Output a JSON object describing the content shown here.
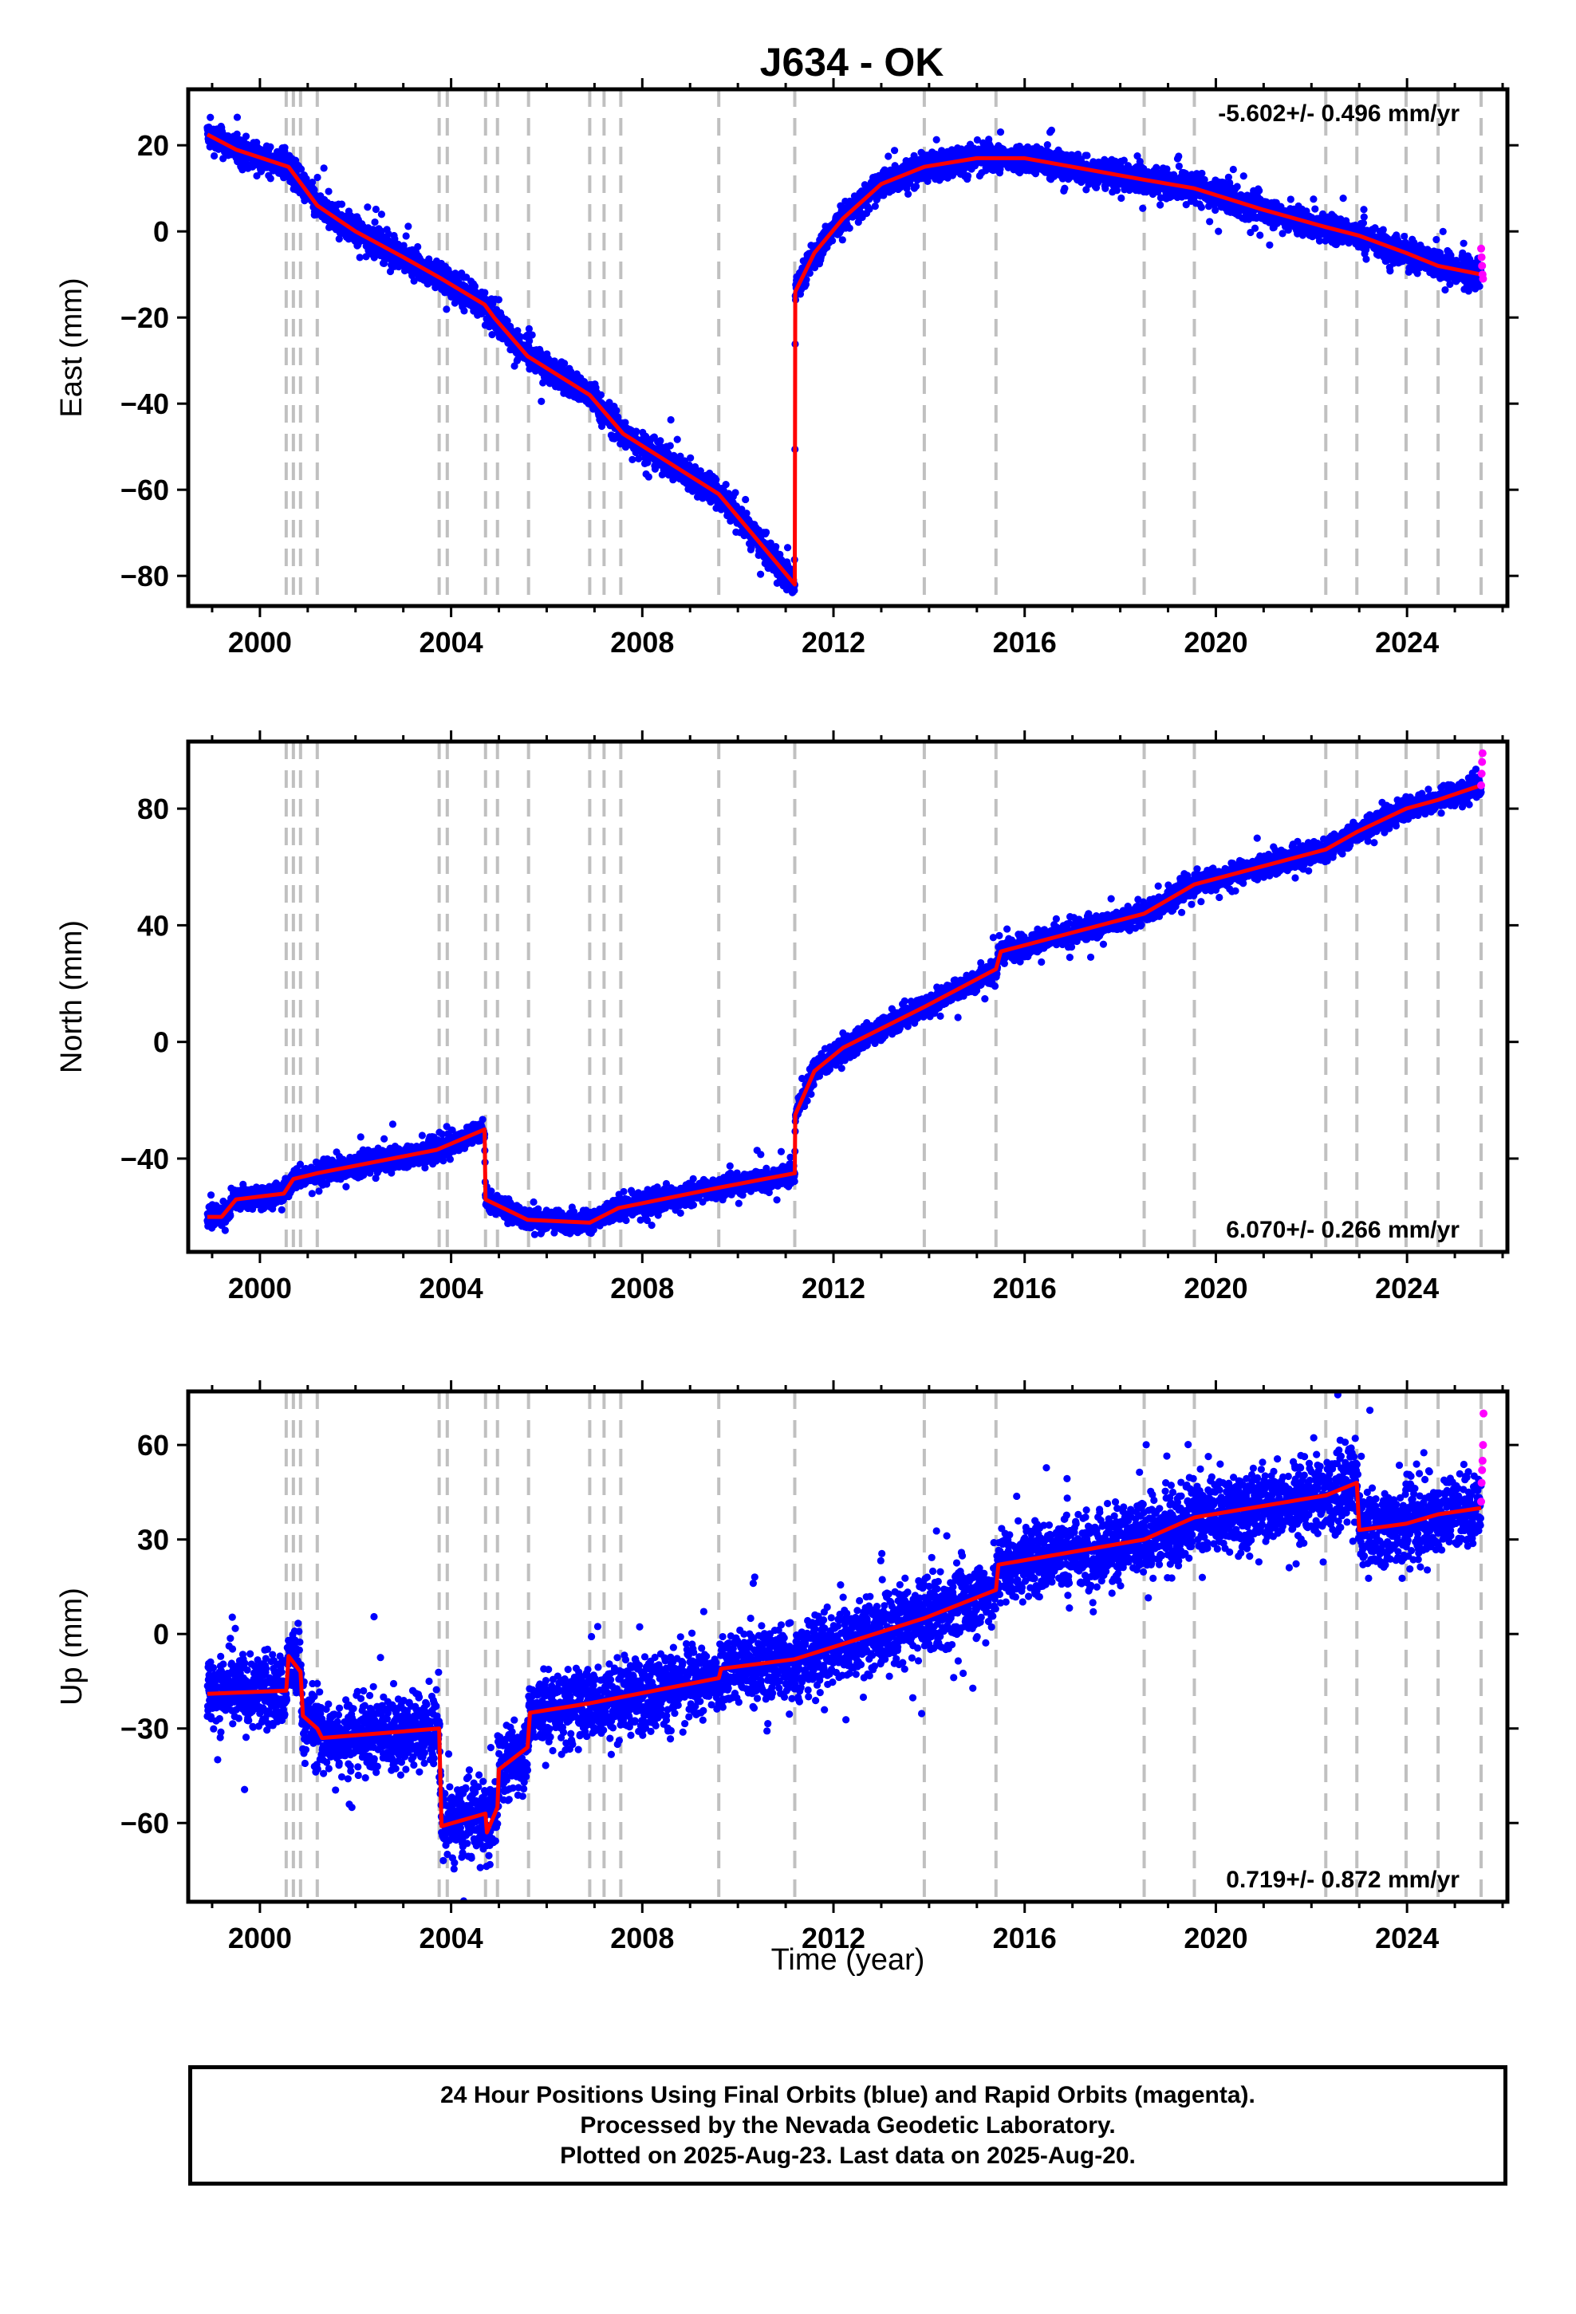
{
  "chart_data": {
    "type": "scatter",
    "title": "J634 - OK",
    "xlabel": "Time (year)",
    "xlim": [
      1998.5,
      2026.1
    ],
    "xticks": [
      2000,
      2004,
      2008,
      2012,
      2016,
      2020,
      2024
    ],
    "event_lines": [
      2000.55,
      2000.7,
      2000.85,
      2001.2,
      2003.75,
      2003.92,
      2004.72,
      2004.97,
      2005.62,
      2006.9,
      2007.2,
      2007.55,
      2009.6,
      2011.19,
      2013.9,
      2015.4,
      2018.5,
      2019.55,
      2022.3,
      2022.95,
      2023.98,
      2024.65,
      2025.55
    ],
    "colors": {
      "final": "#0000ff",
      "rapid": "#ff00ff",
      "model": "#ff0000",
      "event": "#c0c0c0"
    },
    "panels": [
      {
        "ylabel": "East (mm)",
        "rate": "-5.602+/- 0.496 mm/yr",
        "rate_position": "top-right",
        "ylim": [
          -87,
          33
        ],
        "yticks": [
          20,
          0,
          -20,
          -40,
          -60,
          -80
        ],
        "scatter_half_width": 2.2,
        "model": [
          [
            1998.9,
            22.5
          ],
          [
            1999.5,
            19
          ],
          [
            2000.6,
            15
          ],
          [
            2001.2,
            6
          ],
          [
            2002.0,
            0
          ],
          [
            2003.0,
            -6
          ],
          [
            2003.8,
            -11
          ],
          [
            2004.7,
            -17
          ],
          [
            2004.9,
            -20
          ],
          [
            2005.6,
            -29
          ],
          [
            2006.9,
            -38
          ],
          [
            2007.6,
            -47
          ],
          [
            2009.6,
            -61
          ],
          [
            2011.19,
            -82
          ],
          [
            2011.2,
            -14
          ],
          [
            2011.6,
            -5
          ],
          [
            2012.2,
            3
          ],
          [
            2013.0,
            11
          ],
          [
            2013.9,
            15
          ],
          [
            2015.0,
            17
          ],
          [
            2016.0,
            17
          ],
          [
            2017.0,
            15
          ],
          [
            2018.5,
            12
          ],
          [
            2019.55,
            10
          ],
          [
            2021.0,
            5
          ],
          [
            2022.3,
            1
          ],
          [
            2023.0,
            -1
          ],
          [
            2023.98,
            -5
          ],
          [
            2024.65,
            -8
          ],
          [
            2025.55,
            -10
          ]
        ],
        "rapid": [
          [
            2025.55,
            -4
          ],
          [
            2025.56,
            -6
          ],
          [
            2025.57,
            -8
          ],
          [
            2025.58,
            -10
          ],
          [
            2025.59,
            -11
          ]
        ]
      },
      {
        "ylabel": "North (mm)",
        "rate": "6.070+/- 0.266 mm/yr",
        "rate_position": "bottom-right",
        "ylim": [
          -72,
          103
        ],
        "yticks": [
          80,
          40,
          0,
          -40
        ],
        "scatter_half_width": 2.5,
        "model": [
          [
            1998.9,
            -60
          ],
          [
            1999.2,
            -60
          ],
          [
            1999.5,
            -54
          ],
          [
            2000.5,
            -52
          ],
          [
            2000.7,
            -47
          ],
          [
            2001.2,
            -45
          ],
          [
            2003.7,
            -37
          ],
          [
            2004.7,
            -30
          ],
          [
            2004.72,
            -54
          ],
          [
            2005.6,
            -61
          ],
          [
            2006.9,
            -62
          ],
          [
            2007.5,
            -57
          ],
          [
            2009.6,
            -50
          ],
          [
            2011.19,
            -45
          ],
          [
            2011.2,
            -25
          ],
          [
            2011.6,
            -10
          ],
          [
            2012.2,
            -2
          ],
          [
            2013.9,
            12
          ],
          [
            2015.4,
            25
          ],
          [
            2015.5,
            31
          ],
          [
            2018.5,
            44
          ],
          [
            2019.55,
            54
          ],
          [
            2022.3,
            66
          ],
          [
            2022.95,
            72
          ],
          [
            2023.98,
            80
          ],
          [
            2024.65,
            83
          ],
          [
            2025.55,
            88
          ]
        ],
        "rapid": [
          [
            2025.55,
            88
          ],
          [
            2025.56,
            92
          ],
          [
            2025.57,
            96
          ],
          [
            2025.58,
            99
          ]
        ]
      },
      {
        "ylabel": "Up (mm)",
        "rate": "0.719+/- 0.872 mm/yr",
        "rate_position": "bottom-right",
        "ylim": [
          -85,
          77
        ],
        "yticks": [
          60,
          30,
          0,
          -30,
          -60
        ],
        "scatter_half_width": 8,
        "model": [
          [
            1998.9,
            -19
          ],
          [
            2000.55,
            -18
          ],
          [
            2000.6,
            -7
          ],
          [
            2000.85,
            -12
          ],
          [
            2000.9,
            -26
          ],
          [
            2001.2,
            -30
          ],
          [
            2001.3,
            -33
          ],
          [
            2003.75,
            -30
          ],
          [
            2003.8,
            -61
          ],
          [
            2004.72,
            -57
          ],
          [
            2004.75,
            -63
          ],
          [
            2004.97,
            -55
          ],
          [
            2005.0,
            -43
          ],
          [
            2005.6,
            -36
          ],
          [
            2005.65,
            -25
          ],
          [
            2006.9,
            -22
          ],
          [
            2009.6,
            -14
          ],
          [
            2009.65,
            -11
          ],
          [
            2011.19,
            -8
          ],
          [
            2013.9,
            5
          ],
          [
            2015.4,
            14
          ],
          [
            2015.45,
            22
          ],
          [
            2018.5,
            30
          ],
          [
            2019.55,
            37
          ],
          [
            2022.3,
            44
          ],
          [
            2022.95,
            48
          ],
          [
            2023.0,
            33
          ],
          [
            2023.98,
            35
          ],
          [
            2024.65,
            38
          ],
          [
            2025.55,
            40
          ]
        ],
        "rapid": [
          [
            2025.55,
            42
          ],
          [
            2025.56,
            48
          ],
          [
            2025.57,
            52
          ],
          [
            2025.58,
            55
          ],
          [
            2025.59,
            60
          ],
          [
            2025.6,
            70
          ]
        ]
      }
    ]
  },
  "footer": {
    "line1": "24 Hour Positions Using Final Orbits (blue) and Rapid Orbits (magenta).",
    "line2": "Processed by the Nevada Geodetic Laboratory.",
    "line3": "Plotted on 2025-Aug-23. Last data on 2025-Aug-20."
  }
}
